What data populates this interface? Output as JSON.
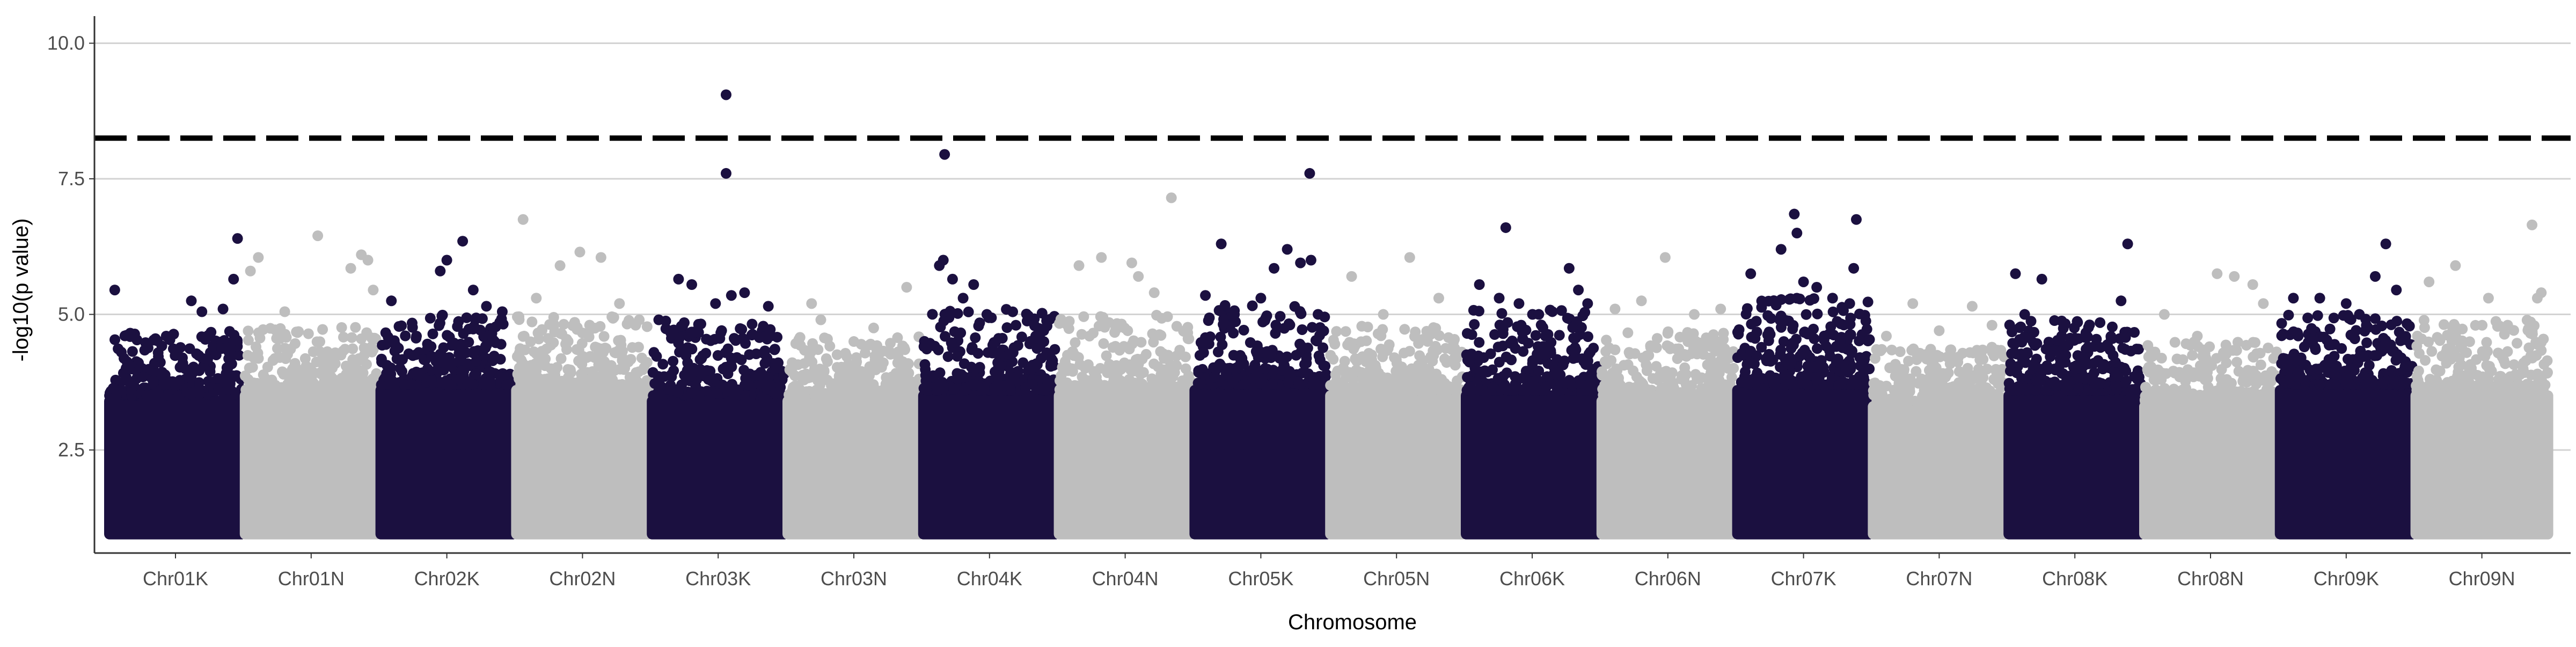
{
  "chart_data": {
    "type": "scatter",
    "title": "",
    "xlabel": "Chromosome",
    "ylabel": "-log10(p value)",
    "ylim": [
      0.6,
      10.5
    ],
    "y_ticks": [
      {
        "value": 2.5,
        "label": "2.5"
      },
      {
        "value": 5.0,
        "label": "5.0"
      },
      {
        "value": 7.5,
        "label": "7.5"
      },
      {
        "value": 10.0,
        "label": "10.0"
      }
    ],
    "threshold": {
      "value": 8.25,
      "style": "dashed",
      "color": "#000000"
    },
    "grid": {
      "horizontal": true,
      "vertical": false
    },
    "legend": "none",
    "colors": {
      "dark": "#1b1040",
      "light": "#bebebe"
    },
    "categories": [
      "Chr01K",
      "Chr01N",
      "Chr02K",
      "Chr02N",
      "Chr03K",
      "Chr03N",
      "Chr04K",
      "Chr04N",
      "Chr05K",
      "Chr05N",
      "Chr06K",
      "Chr06N",
      "Chr07K",
      "Chr07N",
      "Chr08K",
      "Chr08N",
      "Chr09K",
      "Chr09N"
    ],
    "series": [
      {
        "chromosome": "Chr01K",
        "color": "dark",
        "baseline_top": 3.5,
        "band_max": 4.2,
        "top_hits": [
          [
            0.04,
            5.45
          ],
          [
            0.43,
            4.6
          ],
          [
            0.62,
            5.25
          ],
          [
            0.7,
            5.05
          ],
          [
            0.86,
            5.1
          ],
          [
            0.94,
            5.65
          ],
          [
            0.97,
            6.4
          ]
        ]
      },
      {
        "chromosome": "Chr01N",
        "color": "light",
        "baseline_top": 3.6,
        "band_max": 4.3,
        "top_hits": [
          [
            0.04,
            5.8
          ],
          [
            0.1,
            6.05
          ],
          [
            0.3,
            5.05
          ],
          [
            0.55,
            6.45
          ],
          [
            0.8,
            5.85
          ],
          [
            0.88,
            6.1
          ],
          [
            0.93,
            6.0
          ],
          [
            0.97,
            5.45
          ]
        ]
      },
      {
        "chromosome": "Chr02K",
        "color": "dark",
        "baseline_top": 3.7,
        "band_max": 4.5,
        "top_hits": [
          [
            0.08,
            5.25
          ],
          [
            0.27,
            4.6
          ],
          [
            0.45,
            5.8
          ],
          [
            0.5,
            6.0
          ],
          [
            0.62,
            6.35
          ],
          [
            0.7,
            5.45
          ],
          [
            0.8,
            5.15
          ],
          [
            0.92,
            5.05
          ]
        ]
      },
      {
        "chromosome": "Chr02N",
        "color": "light",
        "baseline_top": 3.7,
        "band_max": 4.5,
        "top_hits": [
          [
            0.05,
            6.75
          ],
          [
            0.15,
            5.3
          ],
          [
            0.33,
            5.9
          ],
          [
            0.48,
            6.15
          ],
          [
            0.64,
            6.05
          ],
          [
            0.78,
            5.2
          ],
          [
            0.93,
            4.9
          ]
        ]
      },
      {
        "chromosome": "Chr03K",
        "color": "dark",
        "baseline_top": 3.5,
        "band_max": 4.4,
        "top_hits": [
          [
            0.05,
            4.9
          ],
          [
            0.2,
            5.65
          ],
          [
            0.3,
            5.55
          ],
          [
            0.48,
            5.2
          ],
          [
            0.56,
            9.05
          ],
          [
            0.56,
            7.6
          ],
          [
            0.6,
            5.35
          ],
          [
            0.7,
            5.4
          ],
          [
            0.88,
            5.15
          ]
        ]
      },
      {
        "chromosome": "Chr03N",
        "color": "light",
        "baseline_top": 3.5,
        "band_max": 4.1,
        "top_hits": [
          [
            0.18,
            5.2
          ],
          [
            0.25,
            4.9
          ],
          [
            0.5,
            4.5
          ],
          [
            0.65,
            4.75
          ],
          [
            0.9,
            5.5
          ]
        ]
      },
      {
        "chromosome": "Chr04K",
        "color": "dark",
        "baseline_top": 3.6,
        "band_max": 4.6,
        "top_hits": [
          [
            0.12,
            5.9
          ],
          [
            0.15,
            6.0
          ],
          [
            0.22,
            5.65
          ],
          [
            0.3,
            5.3
          ],
          [
            0.38,
            5.55
          ],
          [
            0.48,
            5.0
          ],
          [
            0.7,
            4.8
          ],
          [
            0.85,
            4.6
          ],
          [
            0.16,
            7.95
          ]
        ]
      },
      {
        "chromosome": "Chr04N",
        "color": "light",
        "baseline_top": 3.6,
        "band_max": 4.5,
        "top_hits": [
          [
            0.15,
            5.9
          ],
          [
            0.32,
            6.05
          ],
          [
            0.55,
            5.95
          ],
          [
            0.6,
            5.7
          ],
          [
            0.85,
            7.15
          ],
          [
            0.72,
            5.4
          ]
        ]
      },
      {
        "chromosome": "Chr05K",
        "color": "dark",
        "baseline_top": 3.7,
        "band_max": 4.7,
        "top_hits": [
          [
            0.08,
            5.35
          ],
          [
            0.2,
            6.3
          ],
          [
            0.3,
            5.0
          ],
          [
            0.5,
            5.3
          ],
          [
            0.6,
            5.85
          ],
          [
            0.7,
            6.2
          ],
          [
            0.8,
            5.95
          ],
          [
            0.88,
            6.0
          ],
          [
            0.87,
            7.6
          ]
        ]
      },
      {
        "chromosome": "Chr05N",
        "color": "light",
        "baseline_top": 3.6,
        "band_max": 4.3,
        "top_hits": [
          [
            0.16,
            5.7
          ],
          [
            0.4,
            5.0
          ],
          [
            0.6,
            6.05
          ],
          [
            0.82,
            5.3
          ]
        ]
      },
      {
        "chromosome": "Chr06K",
        "color": "dark",
        "baseline_top": 3.6,
        "band_max": 4.6,
        "top_hits": [
          [
            0.1,
            5.55
          ],
          [
            0.25,
            5.3
          ],
          [
            0.3,
            6.6
          ],
          [
            0.4,
            5.2
          ],
          [
            0.55,
            5.0
          ],
          [
            0.78,
            5.85
          ],
          [
            0.85,
            5.45
          ],
          [
            0.92,
            5.2
          ]
        ]
      },
      {
        "chromosome": "Chr06N",
        "color": "light",
        "baseline_top": 3.5,
        "band_max": 4.2,
        "top_hits": [
          [
            0.1,
            5.1
          ],
          [
            0.3,
            5.25
          ],
          [
            0.48,
            6.05
          ],
          [
            0.7,
            5.0
          ],
          [
            0.9,
            5.1
          ]
        ]
      },
      {
        "chromosome": "Chr07K",
        "color": "dark",
        "baseline_top": 3.7,
        "band_max": 4.8,
        "top_hits": [
          [
            0.1,
            5.75
          ],
          [
            0.33,
            6.2
          ],
          [
            0.43,
            6.85
          ],
          [
            0.45,
            6.5
          ],
          [
            0.5,
            5.6
          ],
          [
            0.6,
            5.5
          ],
          [
            0.72,
            5.3
          ],
          [
            0.85,
            5.2
          ],
          [
            0.9,
            6.75
          ],
          [
            0.88,
            5.85
          ]
        ]
      },
      {
        "chromosome": "Chr07N",
        "color": "light",
        "baseline_top": 3.4,
        "band_max": 3.9,
        "top_hits": [
          [
            0.1,
            4.6
          ],
          [
            0.3,
            5.2
          ],
          [
            0.5,
            4.7
          ],
          [
            0.75,
            5.15
          ],
          [
            0.9,
            4.8
          ]
        ]
      },
      {
        "chromosome": "Chr08K",
        "color": "dark",
        "baseline_top": 3.6,
        "band_max": 4.4,
        "top_hits": [
          [
            0.05,
            5.75
          ],
          [
            0.12,
            5.0
          ],
          [
            0.25,
            5.65
          ],
          [
            0.4,
            4.6
          ],
          [
            0.6,
            4.4
          ],
          [
            0.85,
            5.25
          ],
          [
            0.9,
            6.3
          ],
          [
            0.75,
            4.4
          ]
        ]
      },
      {
        "chromosome": "Chr08N",
        "color": "light",
        "baseline_top": 3.4,
        "band_max": 4.0,
        "top_hits": [
          [
            0.15,
            5.0
          ],
          [
            0.4,
            4.6
          ],
          [
            0.55,
            5.75
          ],
          [
            0.68,
            5.7
          ],
          [
            0.82,
            5.55
          ],
          [
            0.9,
            5.2
          ]
        ]
      },
      {
        "chromosome": "Chr09K",
        "color": "dark",
        "baseline_top": 3.7,
        "band_max": 4.5,
        "top_hits": [
          [
            0.1,
            5.3
          ],
          [
            0.3,
            5.3
          ],
          [
            0.5,
            5.2
          ],
          [
            0.72,
            5.7
          ],
          [
            0.8,
            6.3
          ],
          [
            0.88,
            5.45
          ],
          [
            0.6,
            5.0
          ]
        ]
      },
      {
        "chromosome": "Chr09N",
        "color": "light",
        "baseline_top": 3.6,
        "band_max": 4.4,
        "top_hits": [
          [
            0.1,
            5.6
          ],
          [
            0.3,
            5.9
          ],
          [
            0.55,
            5.3
          ],
          [
            0.88,
            6.65
          ],
          [
            0.92,
            5.3
          ],
          [
            0.95,
            5.4
          ]
        ]
      }
    ]
  }
}
